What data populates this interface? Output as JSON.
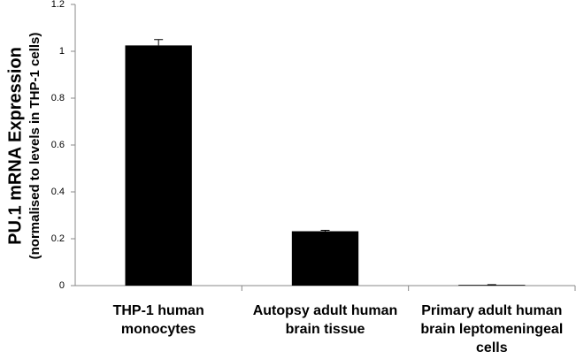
{
  "chart_data": {
    "type": "bar",
    "y_label": [
      "PU.1 mRNA Expression",
      "(normalised to levels in THP-1 cells)"
    ],
    "categories": [
      "THP-1 human monocytes",
      "Autopsy adult human brain tissue",
      "Primary adult human brain leptomeningeal cells"
    ],
    "values": [
      1.025,
      0.232,
      0.003
    ],
    "errors": [
      0.025,
      0.004,
      0.001
    ],
    "color": "#000000",
    "ylim": [
      0,
      1.2
    ],
    "yticks": [
      0,
      0.2,
      0.4,
      0.6,
      0.8,
      1,
      1.2
    ],
    "grid": false
  }
}
